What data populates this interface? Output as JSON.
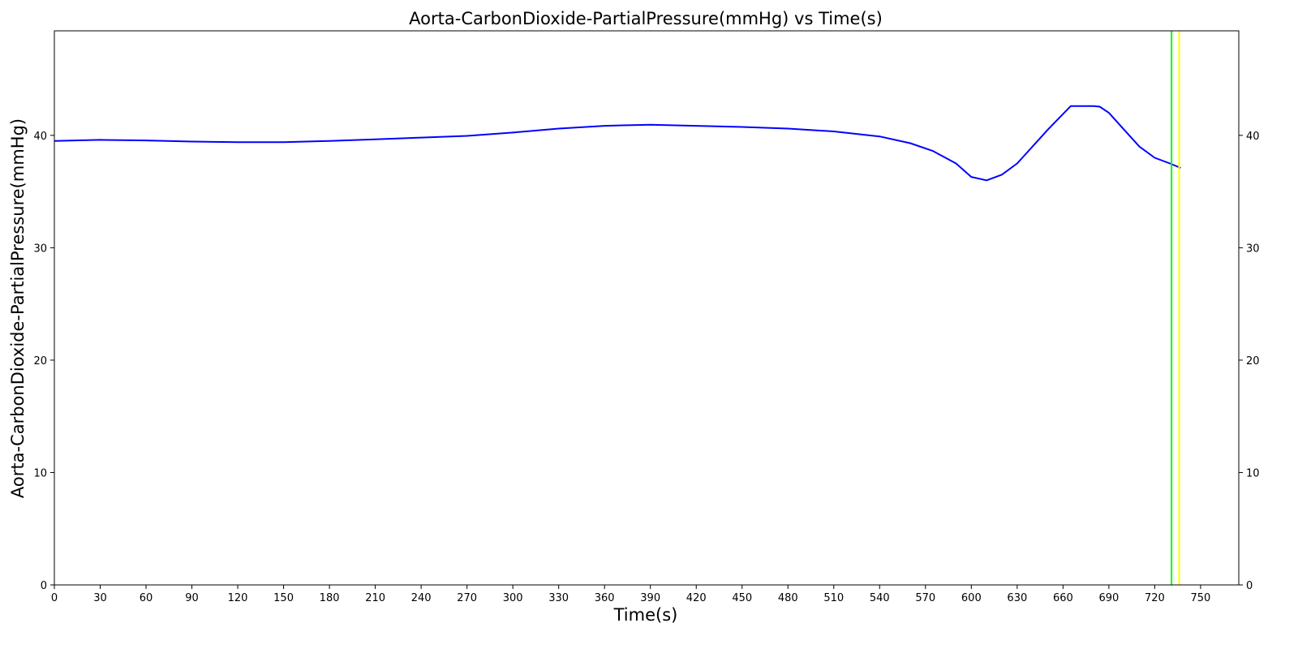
{
  "chart_data": {
    "type": "line",
    "title": "Aorta-CarbonDioxide-PartialPressure(mmHg) vs Time(s)",
    "xlabel": "Time(s)",
    "ylabel": "Aorta-CarbonDioxide-PartialPressure(mmHg)",
    "xlim": [
      0,
      775
    ],
    "ylim": [
      0,
      49.3
    ],
    "xticks": [
      0,
      30,
      60,
      90,
      120,
      150,
      180,
      210,
      240,
      270,
      300,
      330,
      360,
      390,
      420,
      450,
      480,
      510,
      540,
      570,
      600,
      630,
      660,
      690,
      720,
      750
    ],
    "yticks": [
      0,
      10,
      20,
      30,
      40
    ],
    "yticks_right": [
      0,
      10,
      20,
      30,
      40
    ],
    "grid": false,
    "legend": "none",
    "series": [
      {
        "color": "#0000ff",
        "x": [
          0,
          30,
          60,
          90,
          120,
          150,
          180,
          210,
          240,
          270,
          300,
          330,
          360,
          390,
          420,
          450,
          480,
          510,
          540,
          560,
          575,
          590,
          600,
          610,
          620,
          630,
          640,
          650,
          665,
          670,
          680,
          684,
          690,
          700,
          710,
          720,
          730,
          737
        ],
        "y": [
          39.5,
          39.6,
          39.55,
          39.45,
          39.4,
          39.4,
          39.5,
          39.65,
          39.8,
          39.95,
          40.25,
          40.6,
          40.85,
          40.95,
          40.85,
          40.75,
          40.6,
          40.35,
          39.9,
          39.3,
          38.6,
          37.5,
          36.3,
          36.0,
          36.5,
          37.5,
          39.0,
          40.5,
          42.6,
          42.6,
          42.6,
          42.55,
          42.0,
          40.5,
          39.0,
          38.0,
          37.5,
          37.1
        ]
      }
    ],
    "vlines": [
      {
        "x": 731,
        "color": "#00ff00"
      },
      {
        "x": 736,
        "color": "#ffff00"
      }
    ]
  }
}
